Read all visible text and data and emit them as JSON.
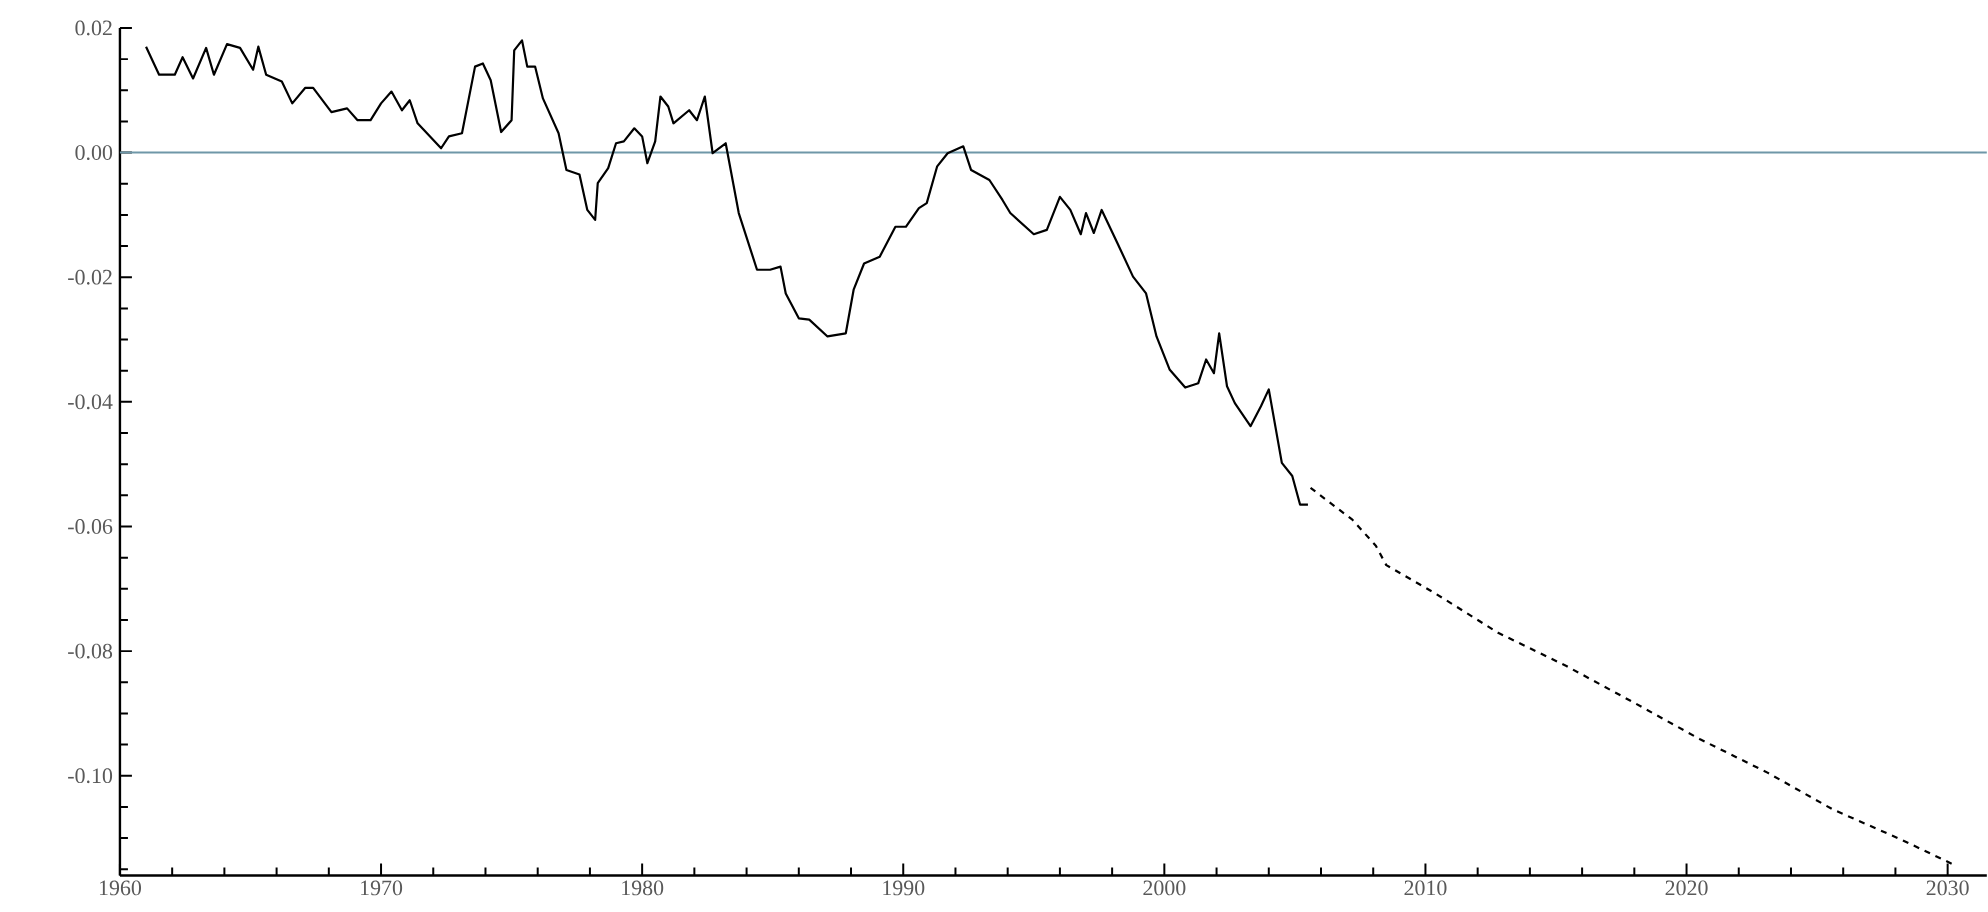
{
  "chart_data": {
    "type": "line",
    "xlim": [
      1960,
      2031.5
    ],
    "ylim": [
      -0.116,
      0.02
    ],
    "xticks": [
      {
        "value": 1960,
        "label": "1960"
      },
      {
        "value": 1962,
        "label": null
      },
      {
        "value": 1964,
        "label": null
      },
      {
        "value": 1966,
        "label": null
      },
      {
        "value": 1968,
        "label": null
      },
      {
        "value": 1970,
        "label": "1970"
      },
      {
        "value": 1972,
        "label": null
      },
      {
        "value": 1974,
        "label": null
      },
      {
        "value": 1976,
        "label": null
      },
      {
        "value": 1978,
        "label": null
      },
      {
        "value": 1980,
        "label": "1980"
      },
      {
        "value": 1982,
        "label": null
      },
      {
        "value": 1984,
        "label": null
      },
      {
        "value": 1986,
        "label": null
      },
      {
        "value": 1988,
        "label": null
      },
      {
        "value": 1990,
        "label": "1990"
      },
      {
        "value": 1992,
        "label": null
      },
      {
        "value": 1994,
        "label": null
      },
      {
        "value": 1996,
        "label": null
      },
      {
        "value": 1998,
        "label": null
      },
      {
        "value": 2000,
        "label": "2000"
      },
      {
        "value": 2002,
        "label": null
      },
      {
        "value": 2004,
        "label": null
      },
      {
        "value": 2006,
        "label": null
      },
      {
        "value": 2008,
        "label": null
      },
      {
        "value": 2010,
        "label": "2010"
      },
      {
        "value": 2012,
        "label": null
      },
      {
        "value": 2014,
        "label": null
      },
      {
        "value": 2016,
        "label": null
      },
      {
        "value": 2018,
        "label": null
      },
      {
        "value": 2020,
        "label": "2020"
      },
      {
        "value": 2022,
        "label": null
      },
      {
        "value": 2024,
        "label": null
      },
      {
        "value": 2026,
        "label": null
      },
      {
        "value": 2028,
        "label": null
      },
      {
        "value": 2030,
        "label": "2030"
      }
    ],
    "yticks": [
      {
        "value": 0.02,
        "label": "0.02"
      },
      {
        "value": 0.015,
        "label": null
      },
      {
        "value": 0.01,
        "label": null
      },
      {
        "value": 0.005,
        "label": null
      },
      {
        "value": 0,
        "label": "0.00"
      },
      {
        "value": -0.005,
        "label": null
      },
      {
        "value": -0.01,
        "label": null
      },
      {
        "value": -0.015,
        "label": null
      },
      {
        "value": -0.02,
        "label": "-0.02"
      },
      {
        "value": -0.025,
        "label": null
      },
      {
        "value": -0.03,
        "label": null
      },
      {
        "value": -0.035,
        "label": null
      },
      {
        "value": -0.04,
        "label": "-0.04"
      },
      {
        "value": -0.045,
        "label": null
      },
      {
        "value": -0.05,
        "label": null
      },
      {
        "value": -0.055,
        "label": null
      },
      {
        "value": -0.06,
        "label": "-0.06"
      },
      {
        "value": -0.065,
        "label": null
      },
      {
        "value": -0.07,
        "label": null
      },
      {
        "value": -0.075,
        "label": null
      },
      {
        "value": -0.08,
        "label": "-0.08"
      },
      {
        "value": -0.085,
        "label": null
      },
      {
        "value": -0.09,
        "label": null
      },
      {
        "value": -0.095,
        "label": null
      },
      {
        "value": -0.1,
        "label": "-0.10"
      },
      {
        "value": -0.105,
        "label": null
      },
      {
        "value": -0.11,
        "label": null
      },
      {
        "value": -0.115,
        "label": null
      }
    ],
    "ref_lines": [
      {
        "axis": "y",
        "value": 0,
        "color": "#6f97a8"
      }
    ],
    "series": [
      {
        "color": "#000000",
        "line_style": "solid",
        "x": [
          1961.0,
          1961.5,
          1962.1,
          1962.4,
          1962.8,
          1963.3,
          1963.6,
          1964.1,
          1964.6,
          1965.1,
          1965.3,
          1965.6,
          1966.2,
          1966.6,
          1967.1,
          1967.4,
          1968.1,
          1968.7,
          1969.1,
          1969.6,
          1970.0,
          1970.4,
          1970.8,
          1971.1,
          1971.4,
          1972.3,
          1972.6,
          1973.1,
          1973.6,
          1973.9,
          1974.2,
          1974.6,
          1975.0,
          1975.1,
          1975.4,
          1975.6,
          1975.9,
          1976.2,
          1976.8,
          1977.1,
          1977.6,
          1977.9,
          1978.2,
          1978.3,
          1978.7,
          1979.0,
          1979.3,
          1979.7,
          1980.0,
          1980.2,
          1980.5,
          1980.7,
          1981.0,
          1981.2,
          1981.8,
          1982.1,
          1982.4,
          1982.7,
          1983.2,
          1983.7,
          1984.4,
          1984.9,
          1985.3,
          1985.5,
          1986.0,
          1986.4,
          1987.1,
          1987.8,
          1988.1,
          1988.5,
          1989.1,
          1989.7,
          1990.1,
          1990.6,
          1990.9,
          1991.3,
          1991.7,
          1992.3,
          1992.6,
          1993.3,
          1993.8,
          1994.1,
          1995.0,
          1995.5,
          1996.0,
          1996.4,
          1996.8,
          1997.0,
          1997.3,
          1997.6,
          1998.2,
          1998.8,
          1999.3,
          1999.7,
          2000.2,
          2000.8,
          2001.3,
          2001.6,
          2001.9,
          2002.1,
          2002.4,
          2002.7,
          2003.3,
          2003.7,
          2004.0,
          2004.5,
          2004.9,
          2005.2,
          2005.5
        ],
        "values": [
          0.017,
          0.0125,
          0.0125,
          0.0153,
          0.0119,
          0.0168,
          0.0125,
          0.0174,
          0.0168,
          0.0133,
          0.017,
          0.0125,
          0.0114,
          0.0079,
          0.0104,
          0.0104,
          0.0065,
          0.0071,
          0.0052,
          0.0052,
          0.0079,
          0.0098,
          0.0068,
          0.0084,
          0.0047,
          0.0007,
          0.0026,
          0.0031,
          0.0138,
          0.0143,
          0.0116,
          0.0033,
          0.0052,
          0.0164,
          0.018,
          0.0138,
          0.0138,
          0.0087,
          0.0031,
          -0.0028,
          -0.0035,
          -0.0092,
          -0.0108,
          -0.0049,
          -0.0025,
          0.0015,
          0.0018,
          0.0039,
          0.0026,
          -0.0017,
          0.0018,
          0.009,
          0.0074,
          0.0047,
          0.0068,
          0.0052,
          0.009,
          -0.0001,
          0.0015,
          -0.0097,
          -0.0188,
          -0.0188,
          -0.0183,
          -0.0226,
          -0.0266,
          -0.0268,
          -0.0295,
          -0.029,
          -0.022,
          -0.0178,
          -0.0167,
          -0.0119,
          -0.0119,
          -0.0089,
          -0.0081,
          -0.0022,
          -0.0001,
          0.001,
          -0.0028,
          -0.0044,
          -0.0076,
          -0.0097,
          -0.0131,
          -0.0124,
          -0.0071,
          -0.0092,
          -0.0131,
          -0.0097,
          -0.0129,
          -0.0092,
          -0.0145,
          -0.0199,
          -0.0226,
          -0.0295,
          -0.0348,
          -0.0377,
          -0.037,
          -0.0332,
          -0.0354,
          -0.029,
          -0.0375,
          -0.0402,
          -0.0439,
          -0.0407,
          -0.038,
          -0.0498,
          -0.0519,
          -0.0565,
          -0.0565
        ]
      },
      {
        "color": "#000000",
        "line_style": "dashed",
        "x": [
          2005.6,
          2007.2,
          2008.1,
          2008.5,
          2010.4,
          2012.8,
          2015.4,
          2018.0,
          2020.5,
          2023.1,
          2025.6,
          2028.2,
          2030.3
        ],
        "values": [
          -0.0538,
          -0.0589,
          -0.0631,
          -0.0662,
          -0.0708,
          -0.0771,
          -0.0824,
          -0.0883,
          -0.0941,
          -0.0995,
          -0.1054,
          -0.1102,
          -0.1144
        ]
      }
    ]
  }
}
